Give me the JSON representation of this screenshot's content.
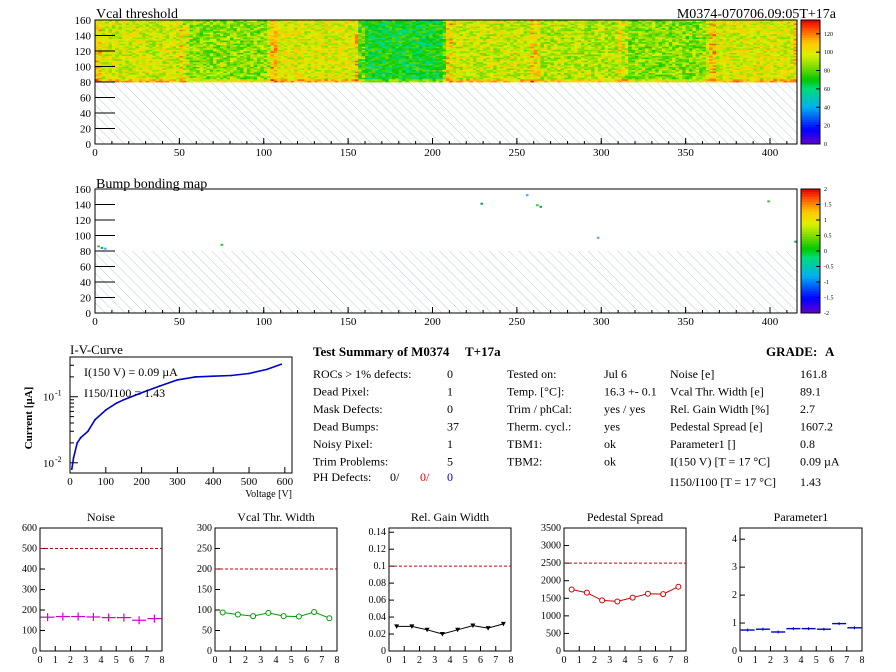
{
  "header": {
    "map1_title": "Vcal threshold",
    "module_label": "M0374-070706.09:05T+17a",
    "map2_title": "Bump bonding map"
  },
  "summary": {
    "title": "Test Summary of M0374",
    "temp_label": "T+17a",
    "grade_label": "GRADE:",
    "grade_value": "A",
    "col1": [
      {
        "label": "ROCs > 1% defects:",
        "value": "0"
      },
      {
        "label": "Dead Pixel:",
        "value": "1"
      },
      {
        "label": "Mask Defects:",
        "value": "0"
      },
      {
        "label": "Dead Bumps:",
        "value": "37"
      },
      {
        "label": "Noisy Pixel:",
        "value": "1"
      },
      {
        "label": "Trim Problems:",
        "value": "5"
      }
    ],
    "ph_defects": {
      "label": "PH Defects:",
      "v1": "0/",
      "v2": "0/",
      "v3": "0"
    },
    "col2": [
      {
        "label": "Tested on:",
        "value": "Jul 6"
      },
      {
        "label": "Temp. [°C]:",
        "value": "16.3 +- 0.1"
      },
      {
        "label": "Trim / phCal:",
        "value": "yes / yes"
      },
      {
        "label": "Therm. cycl.:",
        "value": "yes"
      },
      {
        "label": "TBM1:",
        "value": "ok"
      },
      {
        "label": "TBM2:",
        "value": "ok"
      }
    ],
    "col3": [
      {
        "label": "Noise [e]",
        "value": "161.8"
      },
      {
        "label": "Vcal Thr. Width [e]",
        "value": "89.1"
      },
      {
        "label": "Rel. Gain Width [%]",
        "value": "2.7"
      },
      {
        "label": "Pedestal Spread [e]",
        "value": "1607.2"
      },
      {
        "label": "Parameter1 []",
        "value": "0.8"
      },
      {
        "label": "I(150 V) [T = 17 °C]",
        "value": "0.09 µA"
      },
      {
        "label": "I150/I100 [T = 17 °C]",
        "value": "1.43"
      }
    ]
  },
  "colors": {
    "noise": "#cc00cc",
    "vcal": "#009900",
    "gain": "#000000",
    "pedestal": "#cc0000",
    "param": "#0000cc",
    "iv": "#0000cc",
    "limit": "#cc0000"
  },
  "chart_data": [
    {
      "id": "vcal_map",
      "type": "heatmap",
      "title": "Vcal threshold",
      "xlim": [
        0,
        416
      ],
      "ylim": [
        0,
        160
      ],
      "x_ticks": [
        0,
        50,
        100,
        150,
        200,
        250,
        300,
        350,
        400
      ],
      "y_ticks": [
        0,
        20,
        40,
        60,
        80,
        100,
        120,
        140,
        160
      ],
      "z_ticks": [
        0,
        20,
        40,
        60,
        80,
        100,
        120
      ],
      "zlim": [
        0,
        135
      ],
      "filled_rows": [
        80,
        160
      ],
      "roc_mean_values": [
        96,
        86,
        98,
        70,
        95,
        92,
        85,
        98
      ]
    },
    {
      "id": "bump_map",
      "type": "heatmap",
      "title": "Bump bonding map",
      "xlim": [
        0,
        416
      ],
      "ylim": [
        0,
        160
      ],
      "x_ticks": [
        0,
        50,
        100,
        150,
        200,
        250,
        300,
        350,
        400
      ],
      "y_ticks": [
        0,
        20,
        40,
        60,
        80,
        100,
        120,
        140,
        160
      ],
      "z_ticks": [
        -2,
        -1.5,
        -1,
        -0.5,
        0,
        0.5,
        1,
        1.5,
        2
      ],
      "zlim": [
        -2,
        2
      ],
      "hits": [
        [
          2,
          86
        ],
        [
          4,
          84
        ],
        [
          6,
          83
        ],
        [
          75,
          88
        ],
        [
          229,
          141
        ],
        [
          256,
          152
        ],
        [
          262,
          139
        ],
        [
          264,
          137
        ],
        [
          298,
          97
        ],
        [
          399,
          144
        ],
        [
          415,
          92
        ]
      ]
    },
    {
      "id": "iv_curve",
      "type": "line",
      "title": "I-V-Curve",
      "xlabel": "Voltage [V]",
      "ylabel": "Current [µA]",
      "xlim": [
        0,
        620
      ],
      "ylim": [
        0.007,
        0.4
      ],
      "log_y": true,
      "x_ticks": [
        0,
        100,
        200,
        300,
        400,
        500,
        600
      ],
      "y_ticks": [
        0.01,
        0.1
      ],
      "y_tick_labels": [
        "10^-2",
        "10^-1"
      ],
      "annotations": [
        "I(150 V) = 0.09 µA",
        "I150/I100 = 1.43"
      ],
      "x": [
        5,
        10,
        20,
        30,
        50,
        70,
        100,
        130,
        150,
        200,
        250,
        300,
        350,
        400,
        450,
        500,
        550,
        590
      ],
      "y": [
        0.008,
        0.012,
        0.02,
        0.024,
        0.03,
        0.045,
        0.063,
        0.08,
        0.09,
        0.115,
        0.145,
        0.18,
        0.2,
        0.205,
        0.21,
        0.225,
        0.26,
        0.31
      ]
    },
    {
      "id": "noise",
      "type": "scatter",
      "title": "Noise",
      "xlim": [
        0,
        8
      ],
      "ylim": [
        0,
        600
      ],
      "limit": 500,
      "y_ticks": [
        0,
        100,
        200,
        300,
        400,
        500,
        600
      ],
      "y_tick_labels": [
        "0",
        "100",
        "200",
        "300",
        "400",
        "500",
        "600"
      ],
      "x": [
        0.5,
        1.5,
        2.5,
        3.5,
        4.5,
        5.5,
        6.5,
        7.5
      ],
      "values": [
        165,
        168,
        168,
        166,
        163,
        163,
        150,
        158
      ]
    },
    {
      "id": "vcal_width",
      "type": "line",
      "title": "Vcal Thr. Width",
      "xlim": [
        0,
        8
      ],
      "ylim": [
        0,
        300
      ],
      "limit": 200,
      "y_ticks": [
        0,
        50,
        100,
        150,
        200,
        250,
        300
      ],
      "y_tick_labels": [
        "0",
        "50",
        "100",
        "150",
        "200",
        "250",
        "300"
      ],
      "x": [
        0.5,
        1.5,
        2.5,
        3.5,
        4.5,
        5.5,
        6.5,
        7.5
      ],
      "values": [
        94,
        89,
        85,
        93,
        85,
        84,
        95,
        80
      ]
    },
    {
      "id": "gain_width",
      "type": "line",
      "title": "Rel. Gain Width",
      "xlim": [
        0,
        8
      ],
      "ylim": [
        0,
        0.145
      ],
      "limit": 0.1,
      "y_ticks": [
        0,
        0.02,
        0.04,
        0.06,
        0.08,
        0.1,
        0.12,
        0.14
      ],
      "y_tick_labels": [
        "0",
        "0.02",
        "0.04",
        "0.06",
        "0.08",
        "0.1",
        "0.12",
        "0.14"
      ],
      "x": [
        0.5,
        1.5,
        2.5,
        3.5,
        4.5,
        5.5,
        6.5,
        7.5
      ],
      "values": [
        0.029,
        0.029,
        0.025,
        0.02,
        0.025,
        0.03,
        0.027,
        0.032
      ]
    },
    {
      "id": "pedestal",
      "type": "line",
      "title": "Pedestal Spread",
      "xlim": [
        0,
        8
      ],
      "ylim": [
        0,
        3500
      ],
      "limit": 2500,
      "y_ticks": [
        0,
        500,
        1000,
        1500,
        2000,
        2500,
        3000,
        3500
      ],
      "y_tick_labels": [
        "0",
        "500",
        "1000",
        "1500",
        "2000",
        "2500",
        "3000",
        "3500"
      ],
      "x": [
        0.5,
        1.5,
        2.5,
        3.5,
        4.5,
        5.5,
        6.5,
        7.5
      ],
      "values": [
        1750,
        1660,
        1440,
        1410,
        1520,
        1630,
        1620,
        1830
      ]
    },
    {
      "id": "parameter1",
      "type": "scatter",
      "title": "Parameter1",
      "xlim": [
        0,
        8
      ],
      "ylim": [
        0,
        4.4
      ],
      "y_ticks": [
        0,
        1,
        2,
        3,
        4
      ],
      "y_tick_labels": [
        "0",
        "1",
        "2",
        "3",
        "4"
      ],
      "x": [
        0.5,
        1.5,
        2.5,
        3.5,
        4.5,
        5.5,
        6.5,
        7.5
      ],
      "values": [
        0.75,
        0.78,
        0.68,
        0.8,
        0.8,
        0.78,
        0.98,
        0.83
      ]
    }
  ],
  "x_ticks_small": [
    "0",
    "1",
    "2",
    "3",
    "4",
    "5",
    "6",
    "7",
    "8"
  ]
}
